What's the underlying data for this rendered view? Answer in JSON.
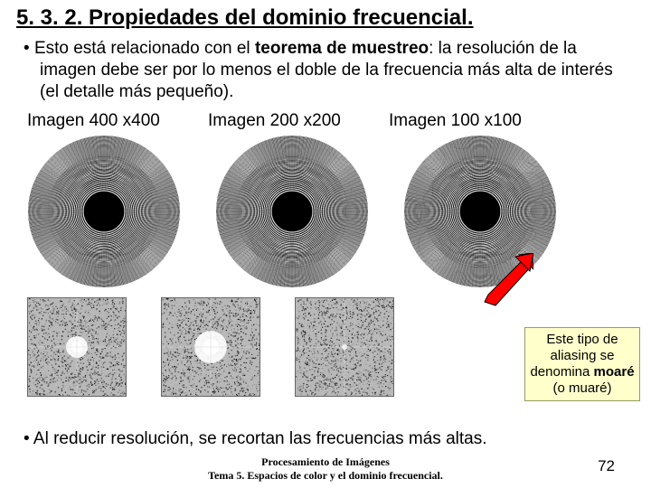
{
  "title": "5. 3. 2. Propiedades del dominio frecuencial.",
  "bullet1_pre": "Esto está relacionado con el ",
  "bullet1_bold": "teorema de muestreo",
  "bullet1_post": ": la resolución de la imagen debe ser por lo menos el doble de la frecuencia más alta de interés (el detalle más pequeño).",
  "labels": {
    "a": "Imagen 400 x400",
    "b": "Imagen 200 x200",
    "c": "Imagen 100 x100"
  },
  "callout_pre": "Este tipo de aliasing se denomina ",
  "callout_bold": "moaré",
  "callout_post": " (o muaré)",
  "bullet2": "Al reducir resolución, se recortan las frecuencias más altas.",
  "footer_l1": "Procesamiento de Imágenes",
  "footer_l2": "Tema 5. Espacios de color y el dominio frecuencial.",
  "pagenum": "72",
  "style": {
    "bg": "#ffffff",
    "text": "#000000",
    "callout_bg": "#ffffcc",
    "callout_border": "#999966",
    "arrow_fill": "#ff0000",
    "arrow_stroke": "#000000",
    "title_fontsize": 24,
    "body_fontsize": 19,
    "callout_fontsize": 15,
    "footer_fontsize": 12,
    "pagenum_fontsize": 17
  },
  "patterns": [
    {
      "name": "zone-400",
      "rings": 54,
      "aliasing": 0.0
    },
    {
      "name": "zone-200",
      "rings": 54,
      "aliasing": 0.3
    },
    {
      "name": "zone-100",
      "rings": 54,
      "aliasing": 0.7
    }
  ]
}
